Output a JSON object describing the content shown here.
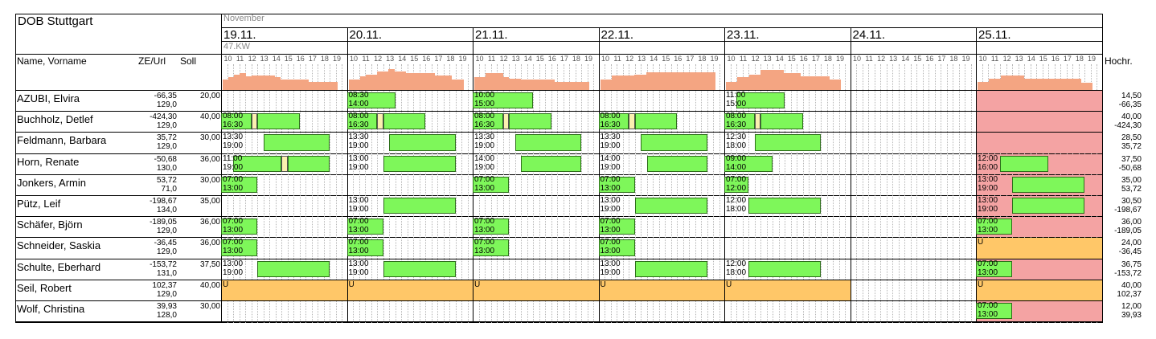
{
  "header": {
    "title": "DOB Stuttgart",
    "month": "November",
    "week": "47.KW",
    "col_name": "Name, Vorname",
    "col_ze": "ZE/Url",
    "col_soll": "Soll",
    "col_hochr": "Hochr."
  },
  "days": [
    {
      "label": "19.11.",
      "bars": [
        0.5,
        0.6,
        0.75,
        0.8,
        0.65,
        0.7,
        0.7,
        0.7,
        0.7,
        0.6,
        0.5,
        0.5,
        0.5,
        0.5,
        0.5,
        0.4,
        0.4,
        0.4,
        0.4,
        0.4
      ]
    },
    {
      "label": "20.11.",
      "bars": [
        0.5,
        0.5,
        0.65,
        0.75,
        0.75,
        0.9,
        0.9,
        1.0,
        0.9,
        0.9,
        0.8,
        0.8,
        0.8,
        0.8,
        0.8,
        0.7,
        0.7,
        0.7,
        0.5,
        0.5
      ]
    },
    {
      "label": "21.11.",
      "bars": [
        0.6,
        0.6,
        0.8,
        0.8,
        0.8,
        0.6,
        0.55,
        0.55,
        0.5,
        0.5,
        0.5,
        0.5,
        0.5,
        0.5,
        0.4,
        0.4,
        0.4,
        0.4,
        0.4,
        0.4
      ]
    },
    {
      "label": "22.11.",
      "bars": [
        0.5,
        0.5,
        0.7,
        0.7,
        0.7,
        0.7,
        0.75,
        0.75,
        0.85,
        0.85,
        0.85,
        0.85,
        0.85,
        0.85,
        0.85,
        0.85,
        0.85,
        0.85,
        0.85,
        0.85
      ]
    },
    {
      "label": "23.11.",
      "bars": [
        0.4,
        0.4,
        0.6,
        0.6,
        0.75,
        0.75,
        0.95,
        0.95,
        0.95,
        0.95,
        0.8,
        0.8,
        0.8,
        0.65,
        0.65,
        0.65,
        0.65,
        0.65,
        0.5,
        0.5
      ]
    },
    {
      "label": "24.11.",
      "bars": []
    },
    {
      "label": "25.11.",
      "bars": [
        0.4,
        0.4,
        0.55,
        0.55,
        0.7,
        0.7,
        0.7,
        0.7,
        0.55,
        0.55,
        0.55,
        0.55,
        0.55,
        0.55,
        0.55,
        0.55,
        0.55,
        0.55,
        0.35,
        0.35
      ]
    }
  ],
  "hours": [
    "10",
    "11",
    "12",
    "13",
    "14",
    "15",
    "16",
    "17",
    "18",
    "19"
  ],
  "employees": [
    {
      "name": "AZUBI, Elvira",
      "ze": "-66,35",
      "url": "129,0",
      "soll": "20,00",
      "hochr_a": "14,50",
      "hochr_b": "-66,35",
      "shifts": [
        {
          "day": 1,
          "start": 8.5,
          "end": 14,
          "t": "08:30\n14:00",
          "bar_from": 10,
          "bar_to": 14
        },
        {
          "day": 2,
          "start": 10,
          "end": 15,
          "t": "10:00\n15:00",
          "bar_from": 10,
          "bar_to": 15
        },
        {
          "day": 4,
          "start": 11,
          "end": 15,
          "t": "11:00\n15:00",
          "bar_from": 11,
          "bar_to": 15
        }
      ],
      "vac": [],
      "sick": [
        6
      ]
    },
    {
      "name": "Buchholz, Detlef",
      "ze": "-424,30",
      "url": "129,0",
      "soll": "40,00",
      "hochr_a": "40,00",
      "hochr_b": "-424,30",
      "shifts": [
        {
          "day": 0,
          "start": 8,
          "end": 16.5,
          "t": "08:00\n16:30",
          "bar_from": 10,
          "bar_to": 16.5,
          "pause": 12.5
        },
        {
          "day": 1,
          "start": 8,
          "end": 16.5,
          "t": "08:00\n16:30",
          "bar_from": 10,
          "bar_to": 16.5,
          "pause": 12.5
        },
        {
          "day": 2,
          "start": 8,
          "end": 16.5,
          "t": "08:00\n16:30",
          "bar_from": 10,
          "bar_to": 16.5,
          "pause": 12.5
        },
        {
          "day": 3,
          "start": 8,
          "end": 16.5,
          "t": "08:00\n16:30",
          "bar_from": 10,
          "bar_to": 16.5,
          "pause": 12.5
        },
        {
          "day": 4,
          "start": 8,
          "end": 16.5,
          "t": "08:00\n16:30",
          "bar_from": 10,
          "bar_to": 16.5,
          "pause": 12.5
        }
      ],
      "vac": [],
      "sick": [
        6
      ]
    },
    {
      "name": "Feldmann, Barbara",
      "ze": "35,72",
      "url": "129,0",
      "soll": "30,00",
      "hochr_a": "28,50",
      "hochr_b": "35,72",
      "shifts": [
        {
          "day": 0,
          "start": 13.5,
          "end": 19,
          "t": "13:30\n19:00",
          "bar_from": 13.5,
          "bar_to": 19
        },
        {
          "day": 1,
          "start": 13.5,
          "end": 19,
          "t": "13:30\n19:00",
          "bar_from": 13.5,
          "bar_to": 19
        },
        {
          "day": 2,
          "start": 13.5,
          "end": 19,
          "t": "13:30\n19:00",
          "bar_from": 13.5,
          "bar_to": 19
        },
        {
          "day": 3,
          "start": 13.5,
          "end": 19,
          "t": "13:30\n19:00",
          "bar_from": 13.5,
          "bar_to": 19
        },
        {
          "day": 4,
          "start": 12.5,
          "end": 18,
          "t": "12:30\n18:00",
          "bar_from": 12.5,
          "bar_to": 18
        }
      ],
      "vac": [],
      "sick": [
        6
      ]
    },
    {
      "name": "Horn, Renate",
      "ze": "-50,68",
      "url": "130,0",
      "soll": "36,00",
      "hochr_a": "37,50",
      "hochr_b": "-50,68",
      "shifts": [
        {
          "day": 0,
          "start": 11,
          "end": 19,
          "t": "11:00\n19:00",
          "bar_from": 11,
          "bar_to": 19,
          "pause": 15
        },
        {
          "day": 1,
          "start": 13,
          "end": 19,
          "t": "13:00\n19:00",
          "bar_from": 13,
          "bar_to": 19
        },
        {
          "day": 2,
          "start": 14,
          "end": 19,
          "t": "14:00\n19:00",
          "bar_from": 14,
          "bar_to": 19
        },
        {
          "day": 3,
          "start": 14,
          "end": 19,
          "t": "14:00\n19:00",
          "bar_from": 14,
          "bar_to": 19
        },
        {
          "day": 4,
          "start": 9,
          "end": 14,
          "t": "09:00\n14:00",
          "bar_from": 10,
          "bar_to": 14
        },
        {
          "day": 6,
          "start": 12,
          "end": 16,
          "t": "12:00\n16:00",
          "bar_from": 12,
          "bar_to": 16
        }
      ],
      "vac": [],
      "sick": [
        6
      ]
    },
    {
      "name": "Jonkers, Armin",
      "ze": "53,72",
      "url": "71,0",
      "soll": "30,00",
      "hochr_a": "35,00",
      "hochr_b": "53,72",
      "shifts": [
        {
          "day": 0,
          "start": 7,
          "end": 13,
          "t": "07:00\n13:00",
          "bar_from": 10,
          "bar_to": 13
        },
        {
          "day": 2,
          "start": 7,
          "end": 13,
          "t": "07:00\n13:00",
          "bar_from": 10,
          "bar_to": 13
        },
        {
          "day": 3,
          "start": 7,
          "end": 13,
          "t": "07:00\n13:00",
          "bar_from": 10,
          "bar_to": 13
        },
        {
          "day": 4,
          "start": 7,
          "end": 12,
          "t": "07:00\n12:00",
          "bar_from": 10,
          "bar_to": 12
        },
        {
          "day": 6,
          "start": 13,
          "end": 19,
          "t": "13:00\n19:00",
          "bar_from": 13,
          "bar_to": 19
        }
      ],
      "vac": [],
      "sick": [
        6
      ]
    },
    {
      "name": "Pütz, Leif",
      "ze": "-198,67",
      "url": "134,0",
      "soll": "35,00",
      "hochr_a": "30,50",
      "hochr_b": "-198,67",
      "shifts": [
        {
          "day": 1,
          "start": 13,
          "end": 19,
          "t": "13:00\n19:00",
          "bar_from": 13,
          "bar_to": 19
        },
        {
          "day": 3,
          "start": 13,
          "end": 19,
          "t": "13:00\n19:00",
          "bar_from": 13,
          "bar_to": 19
        },
        {
          "day": 4,
          "start": 12,
          "end": 18,
          "t": "12:00\n18:00",
          "bar_from": 12,
          "bar_to": 18
        },
        {
          "day": 6,
          "start": 13,
          "end": 19,
          "t": "13:00\n19:00",
          "bar_from": 13,
          "bar_to": 19
        }
      ],
      "vac": [],
      "sick": [
        6
      ]
    },
    {
      "name": "Schäfer, Björn",
      "ze": "-189,05",
      "url": "129,0",
      "soll": "36,00",
      "hochr_a": "36,00",
      "hochr_b": "-189,05",
      "shifts": [
        {
          "day": 0,
          "start": 7,
          "end": 13,
          "t": "07:00\n13:00",
          "bar_from": 10,
          "bar_to": 13
        },
        {
          "day": 1,
          "start": 7,
          "end": 13,
          "t": "07:00\n13:00",
          "bar_from": 10,
          "bar_to": 13
        },
        {
          "day": 2,
          "start": 7,
          "end": 13,
          "t": "07:00\n13:00",
          "bar_from": 10,
          "bar_to": 13
        },
        {
          "day": 3,
          "start": 7,
          "end": 13,
          "t": "07:00\n13:00",
          "bar_from": 10,
          "bar_to": 13
        },
        {
          "day": 6,
          "start": 7,
          "end": 13,
          "t": "07:00\n13:00",
          "bar_from": 10,
          "bar_to": 13
        }
      ],
      "vac": [],
      "sick": [
        6
      ]
    },
    {
      "name": "Schneider, Saskia",
      "ze": "-36,45",
      "url": "129,0",
      "soll": "36,00",
      "hochr_a": "24,00",
      "hochr_b": "-36,45",
      "shifts": [
        {
          "day": 0,
          "start": 7,
          "end": 13,
          "t": "07:00\n13:00",
          "bar_from": 10,
          "bar_to": 13
        },
        {
          "day": 1,
          "start": 7,
          "end": 13,
          "t": "07:00\n13:00",
          "bar_from": 10,
          "bar_to": 13
        },
        {
          "day": 2,
          "start": 7,
          "end": 13,
          "t": "07:00\n13:00",
          "bar_from": 10,
          "bar_to": 13
        },
        {
          "day": 3,
          "start": 7,
          "end": 13,
          "t": "07:00\n13:00",
          "bar_from": 10,
          "bar_to": 13
        }
      ],
      "vac": [
        6
      ],
      "vac_label": "U",
      "sick": []
    },
    {
      "name": "Schulte, Eberhard",
      "ze": "-153,72",
      "url": "131,0",
      "soll": "37,50",
      "hochr_a": "36,75",
      "hochr_b": "-153,72",
      "shifts": [
        {
          "day": 0,
          "start": 13,
          "end": 19,
          "t": "13:00\n19:00",
          "bar_from": 13,
          "bar_to": 19
        },
        {
          "day": 1,
          "start": 13,
          "end": 19,
          "t": "13:00\n19:00",
          "bar_from": 13,
          "bar_to": 19
        },
        {
          "day": 3,
          "start": 13,
          "end": 19,
          "t": "13:00\n19:00",
          "bar_from": 13,
          "bar_to": 19
        },
        {
          "day": 4,
          "start": 12,
          "end": 18,
          "t": "12:00\n18:00",
          "bar_from": 12,
          "bar_to": 18
        },
        {
          "day": 6,
          "start": 7,
          "end": 13,
          "t": "07:00\n13:00",
          "bar_from": 10,
          "bar_to": 13
        }
      ],
      "vac": [],
      "sick": [
        6
      ]
    },
    {
      "name": "Seil, Robert",
      "ze": "102,37",
      "url": "129,0",
      "soll": "40,00",
      "hochr_a": "40,00",
      "hochr_b": "102,37",
      "shifts": [],
      "vac": [
        0,
        1,
        2,
        3,
        4,
        6
      ],
      "vac_label": "U",
      "sick": []
    },
    {
      "name": "Wolf, Christina",
      "ze": "39,93",
      "url": "128,0",
      "soll": "30,00",
      "hochr_a": "12,00",
      "hochr_b": "39,93",
      "shifts": [
        {
          "day": 6,
          "start": 7,
          "end": 13,
          "t": "07:00\n13:00",
          "bar_from": 10,
          "bar_to": 13
        }
      ],
      "vac": [],
      "sick": [
        6
      ]
    }
  ],
  "colors": {
    "shift": "#7ef75a",
    "vacation": "#ffc768",
    "sick": "#f4a3a3",
    "coverage": "#f4a582"
  }
}
